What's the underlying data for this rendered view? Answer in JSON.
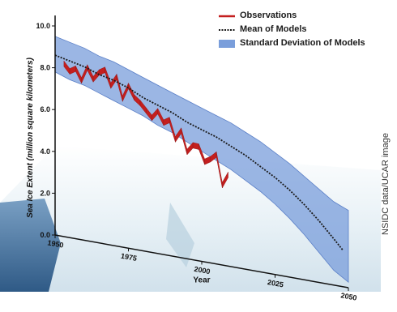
{
  "credit": "NSIDC data/UCAR image",
  "colors": {
    "observations": "#c41f1f",
    "mean": "#1a1a1a",
    "stddev": "#7a9edb",
    "stddev_edge": "#5a7fc7",
    "axis": "#111111",
    "ice": "#d6e6ef",
    "water": "#4d7aa6"
  },
  "chart_data": {
    "type": "line",
    "title": "",
    "xlabel": "Year",
    "ylabel": "Sea Ice Extent (million square kilometers)",
    "xlim": [
      1950,
      2050
    ],
    "ylim": [
      0,
      10
    ],
    "x_ticks": [
      "1950",
      "1975",
      "2000",
      "2025",
      "2050"
    ],
    "x_tick_values": [
      1950,
      1975,
      2000,
      2025,
      2050
    ],
    "y_ticks": [
      "0.0",
      "2.0",
      "4.0",
      "6.0",
      "8.0",
      "10.0"
    ],
    "y_tick_values": [
      0,
      2,
      4,
      6,
      8,
      10
    ],
    "grid": false,
    "legend_position": "top-right",
    "legend": [
      "Observations",
      "Mean of Models",
      "Standard Deviation of Models"
    ],
    "series": [
      {
        "name": "Observations",
        "style": "solid-red-ribbon",
        "x": [
          1953,
          1955,
          1957,
          1959,
          1961,
          1963,
          1965,
          1967,
          1969,
          1971,
          1973,
          1975,
          1977,
          1979,
          1981,
          1983,
          1985,
          1987,
          1989,
          1991,
          1993,
          1995,
          1997,
          1999,
          2001,
          2003,
          2005,
          2007,
          2009
        ],
        "y": [
          8.3,
          8.0,
          8.2,
          7.7,
          8.4,
          7.9,
          8.3,
          8.5,
          7.8,
          8.3,
          7.3,
          8.0,
          7.5,
          7.3,
          7.0,
          6.7,
          7.1,
          6.6,
          6.8,
          5.9,
          6.4,
          5.4,
          5.8,
          5.8,
          5.1,
          5.3,
          5.6,
          4.1,
          4.7
        ]
      },
      {
        "name": "Mean of Models",
        "style": "dotted-black",
        "x": [
          1950,
          1955,
          1960,
          1965,
          1970,
          1975,
          1980,
          1985,
          1990,
          1995,
          2000,
          2005,
          2010,
          2015,
          2020,
          2025,
          2030,
          2035,
          2040,
          2045,
          2048
        ],
        "y": [
          8.6,
          8.5,
          8.4,
          8.2,
          8.1,
          7.9,
          7.6,
          7.4,
          7.2,
          6.9,
          6.7,
          6.5,
          6.2,
          5.9,
          5.5,
          5.1,
          4.6,
          4.0,
          3.3,
          2.5,
          2.0
        ]
      },
      {
        "name": "Standard Deviation of Models",
        "style": "band-blue",
        "x": [
          1950,
          1955,
          1960,
          1965,
          1970,
          1975,
          1980,
          1985,
          1990,
          1995,
          2000,
          2005,
          2010,
          2015,
          2020,
          2025,
          2030,
          2035,
          2040,
          2045,
          2050
        ],
        "upper": [
          9.5,
          9.4,
          9.3,
          9.1,
          9.0,
          8.8,
          8.6,
          8.4,
          8.2,
          8.0,
          7.8,
          7.6,
          7.4,
          7.1,
          6.8,
          6.4,
          6.0,
          5.5,
          5.0,
          4.5,
          4.2
        ],
        "lower": [
          7.8,
          7.6,
          7.5,
          7.3,
          7.1,
          6.9,
          6.7,
          6.4,
          6.2,
          5.9,
          5.6,
          5.3,
          5.0,
          4.6,
          4.2,
          3.7,
          3.1,
          2.4,
          1.6,
          0.8,
          0.3
        ]
      }
    ]
  }
}
